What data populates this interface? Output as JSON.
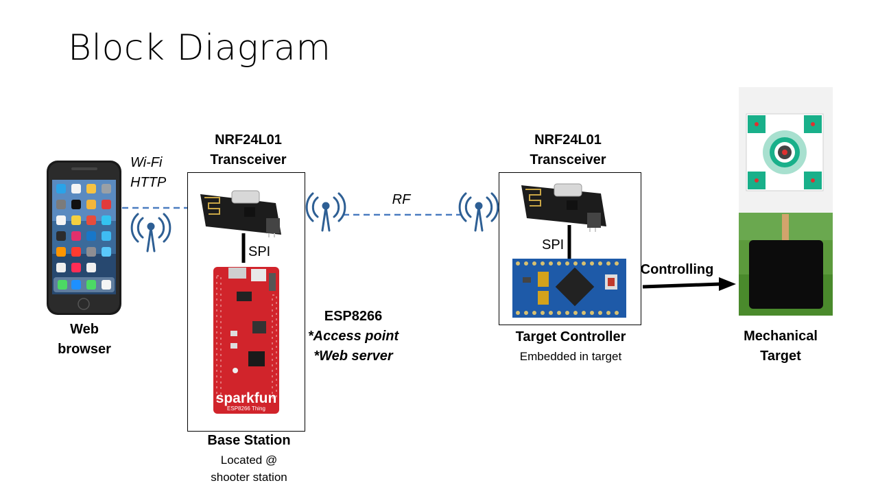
{
  "slide": {
    "title": "Block Diagram"
  },
  "phone": {
    "label_line1": "Web",
    "label_line2": "browser"
  },
  "link_wifi": {
    "line1": "Wi-Fi",
    "line2": "HTTP"
  },
  "base_station": {
    "transceiver_line1": "NRF24L01",
    "transceiver_line2": "Transceiver",
    "spi_label": "SPI",
    "board_brand": "sparkfun",
    "board_model": "ESP8266 Thing",
    "mcu_line1": "ESP8266",
    "mcu_line2": "*Access point",
    "mcu_line3": "*Web server",
    "name": "Base Station",
    "location_line1": "Located @",
    "location_line2": "shooter station"
  },
  "link_rf": {
    "label": "RF"
  },
  "target_controller": {
    "transceiver_line1": "NRF24L01",
    "transceiver_line2": "Transceiver",
    "spi_label": "SPI",
    "name": "Target Controller",
    "subtitle": "Embedded in target"
  },
  "link_control": {
    "label": "Controlling"
  },
  "mechanical_target": {
    "line1": "Mechanical",
    "line2": "Target"
  },
  "colors": {
    "link_line": "#4a7cc0",
    "antenna": "#2e5f94",
    "nrf_pcb": "#1c1c1c",
    "sparkfun_red": "#d1242b",
    "promini_blue": "#1e5aa8",
    "target_green": "#19b08a"
  },
  "icons": [
    "smartphone-icon",
    "antenna-icon",
    "nrf24l01-module-icon",
    "sparkfun-esp8266-board-icon",
    "arduino-pro-mini-board-icon",
    "mechanical-target-photo"
  ]
}
